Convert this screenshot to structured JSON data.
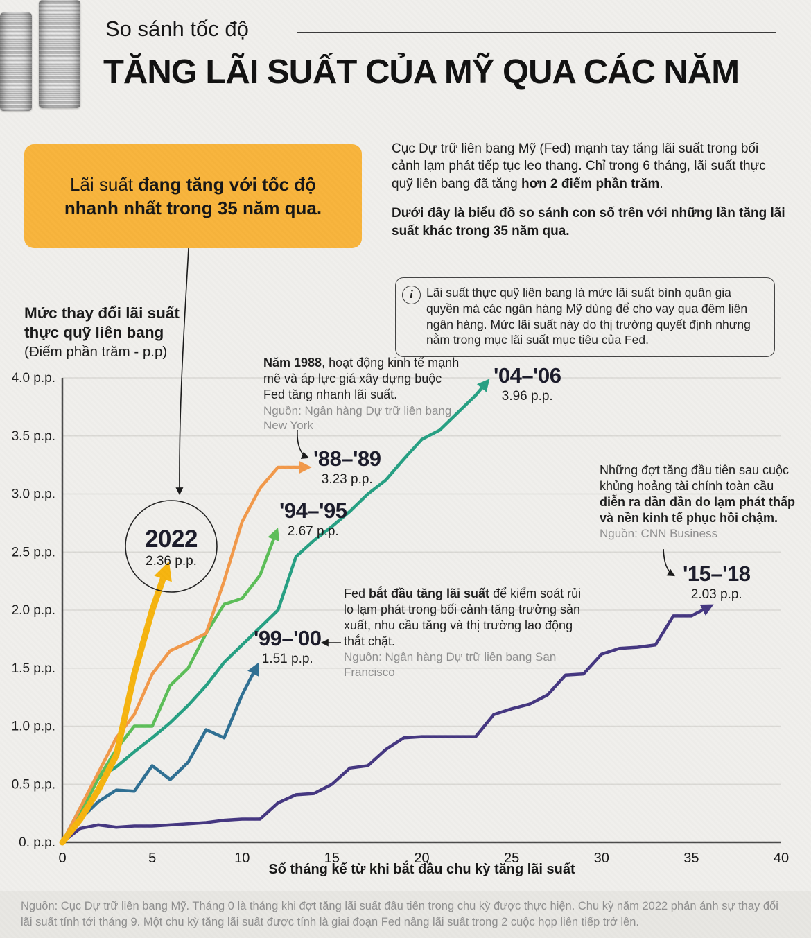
{
  "header": {
    "kicker": "So sánh tốc độ",
    "title": "TĂNG LÃI SUẤT CỦA MỸ QUA CÁC NĂM"
  },
  "callout": {
    "pre": "Lãi suất ",
    "bold": "đang tăng với tốc độ nhanh nhất trong 35 năm qua."
  },
  "intro": {
    "p1_a": "Cục Dự trữ liên bang Mỹ (Fed) mạnh tay tăng lãi suất trong bối cảnh lạm phát tiếp tục leo thang. Chỉ trong 6 tháng, lãi suất thực quỹ liên bang đã tăng ",
    "p1_b": "hơn 2 điểm phần trăm",
    "p1_c": ".",
    "p2": "Dưới đây là biểu đồ so sánh con số trên với những lần tăng lãi suất khác trong 35 năm qua."
  },
  "info_box": {
    "icon": "i",
    "text": "Lãi suất thực quỹ liên bang là mức lãi suất bình quân gia quyền mà các ngân hàng Mỹ dùng để cho vay qua đêm liên ngân hàng. Mức lãi suất này do thị trường quyết định nhưng nằm trong mục lãi suất mục tiêu của Fed."
  },
  "yaxis_title": {
    "bold": "Mức thay đổi lãi suất thực quỹ liên bang",
    "unit": "(Điểm phần trăm - p.p)"
  },
  "annotations": {
    "a1988": {
      "bold": "Năm 1988",
      "rest": ", hoạt động kinh tế mạnh mẽ và áp lực giá xây dựng buộc Fed tăng nhanh lãi suất.",
      "source": "Nguồn: Ngân hàng Dự trữ liên bang New York"
    },
    "afed": {
      "pre": "Fed ",
      "bold": "bắt đầu tăng lãi suất",
      "rest": " để kiểm soát rủi lo lạm phát trong bối cảnh tăng trưởng sản xuất, nhu cầu tăng và thị trường lao động thắt chặt.",
      "source": "Nguồn: Ngân hàng Dự trữ liên bang San Francisco"
    },
    "agfc": {
      "pre": "Những đợt tăng đầu tiên sau cuộc khủng hoảng tài chính toàn cầu ",
      "bold": "diễn ra dần dần do lạm phát thấp và nền kinh tế phục hồi chậm.",
      "source": "Nguồn: CNN Business"
    }
  },
  "series_labels": {
    "y2022": {
      "title": "2022",
      "value": "2.36 p.p."
    },
    "y8889": {
      "title": "'88–'89",
      "value": "3.23 p.p."
    },
    "y9495": {
      "title": "'94–'95",
      "value": "2.67 p.p."
    },
    "y9900": {
      "title": "'99–'00",
      "value": "1.51 p.p."
    },
    "y0406": {
      "title": "'04–'06",
      "value": "3.96 p.p."
    },
    "y1518": {
      "title": "'15–'18",
      "value": "2.03 p.p."
    }
  },
  "xaxis_label": "Số tháng kể từ khi bắt đầu chu kỳ tăng lãi suất",
  "footer": "Nguồn: Cục Dự trữ liên bang Mỹ. Tháng 0 là tháng khi đợt tăng lãi suất đầu tiên trong chu kỳ được thực hiện. Chu kỳ năm 2022 phản ánh sự thay đổi lãi suất tính tới tháng 9. Một chu kỳ tăng lãi suất được tính là giai đoạn Fed nâng lãi suất trong 2 cuộc họp liên tiếp trở lên.",
  "colors": {
    "accent_yellow": "#F8B43C",
    "grid": "#DAD9D5",
    "axis": "#4a4a4a",
    "source_gray": "#8e8e8e"
  },
  "chart_data": {
    "type": "line",
    "title": "So sánh tốc độ tăng lãi suất của Mỹ qua các năm",
    "xlabel": "Số tháng kể từ khi bắt đầu chu kỳ tăng lãi suất",
    "ylabel": "Mức thay đổi lãi suất thực quỹ liên bang (Điểm phần trăm - p.p)",
    "xlim": [
      0,
      40
    ],
    "ylim": [
      0,
      4
    ],
    "grid": true,
    "legend_position": "inline-labels",
    "x_ticks": [
      {
        "value": 0,
        "label": "0"
      },
      {
        "value": 5,
        "label": "5"
      },
      {
        "value": 10,
        "label": "10"
      },
      {
        "value": 15,
        "label": "15"
      },
      {
        "value": 20,
        "label": "20"
      },
      {
        "value": 25,
        "label": "25"
      },
      {
        "value": 30,
        "label": "30"
      },
      {
        "value": 35,
        "label": "35"
      },
      {
        "value": 40,
        "label": "40"
      }
    ],
    "y_ticks": [
      {
        "value": 4,
        "label": "4.0 p.p."
      },
      {
        "value": 3.5,
        "label": "3.5 p.p."
      },
      {
        "value": 3,
        "label": "3.0 p.p."
      },
      {
        "value": 2.5,
        "label": "2.5 p.p."
      },
      {
        "value": 2,
        "label": "2.0 p.p."
      },
      {
        "value": 1.5,
        "label": "1.5 p.p."
      },
      {
        "value": 1,
        "label": "1.0 p.p."
      },
      {
        "value": 0.5,
        "label": "0.5 p.p."
      },
      {
        "value": 0,
        "label": "0. p.p."
      }
    ],
    "series": [
      {
        "name": "'15–'18",
        "color": "#453781",
        "end_value": 2.03,
        "x": [
          0,
          1,
          2,
          3,
          4,
          5,
          6,
          7,
          8,
          9,
          10,
          11,
          12,
          13,
          14,
          15,
          16,
          17,
          18,
          19,
          20,
          21,
          22,
          23,
          24,
          25,
          26,
          27,
          28,
          29,
          30,
          31,
          32,
          33,
          34,
          35,
          36
        ],
        "values": [
          0,
          0.12,
          0.15,
          0.13,
          0.14,
          0.14,
          0.15,
          0.16,
          0.17,
          0.19,
          0.2,
          0.2,
          0.34,
          0.41,
          0.42,
          0.5,
          0.64,
          0.66,
          0.8,
          0.9,
          0.91,
          0.91,
          0.91,
          0.91,
          1.1,
          1.15,
          1.19,
          1.27,
          1.44,
          1.45,
          1.62,
          1.67,
          1.68,
          1.7,
          1.95,
          1.95,
          2.03
        ]
      },
      {
        "name": "'04–'06",
        "color": "#26A083",
        "end_value": 3.96,
        "x": [
          0,
          1,
          2,
          3,
          4,
          5,
          6,
          7,
          8,
          9,
          10,
          11,
          12,
          13,
          14,
          15,
          16,
          17,
          18,
          19,
          20,
          21,
          22,
          23,
          23.6
        ],
        "values": [
          0,
          0.3,
          0.55,
          0.65,
          0.78,
          0.9,
          1.03,
          1.18,
          1.35,
          1.55,
          1.7,
          1.85,
          2.0,
          2.46,
          2.6,
          2.72,
          2.85,
          3.0,
          3.12,
          3.3,
          3.47,
          3.55,
          3.7,
          3.85,
          3.96
        ]
      },
      {
        "name": "'99–'00",
        "color": "#2F6F93",
        "end_value": 1.51,
        "x": [
          0,
          1,
          2,
          3,
          4,
          5,
          6,
          7,
          8,
          9,
          10,
          10.8
        ],
        "values": [
          0,
          0.2,
          0.35,
          0.45,
          0.44,
          0.66,
          0.54,
          0.69,
          0.97,
          0.9,
          1.27,
          1.51
        ]
      },
      {
        "name": "'94–'95",
        "color": "#5CBE58",
        "end_value": 2.67,
        "x": [
          0,
          1,
          2,
          3,
          4,
          5,
          6,
          7,
          8,
          9,
          10,
          11,
          11.9
        ],
        "values": [
          0,
          0.25,
          0.55,
          0.8,
          1.0,
          1.0,
          1.35,
          1.5,
          1.8,
          2.05,
          2.1,
          2.3,
          2.67
        ]
      },
      {
        "name": "'88–'89",
        "color": "#F2994A",
        "end_value": 3.23,
        "arrow_tail_month": 13.6,
        "x": [
          0,
          1,
          2,
          3,
          4,
          5,
          6,
          7,
          8,
          9,
          10,
          11,
          12
        ],
        "values": [
          0,
          0.3,
          0.6,
          0.9,
          1.1,
          1.45,
          1.65,
          1.72,
          1.8,
          2.25,
          2.76,
          3.05,
          3.23
        ]
      },
      {
        "name": "2022",
        "color": "#F6B40F",
        "end_value": 2.36,
        "thick": true,
        "x": [
          0,
          1,
          2,
          3,
          4,
          5,
          5.8
        ],
        "values": [
          0,
          0.2,
          0.45,
          0.75,
          1.45,
          2.0,
          2.36
        ]
      }
    ]
  }
}
